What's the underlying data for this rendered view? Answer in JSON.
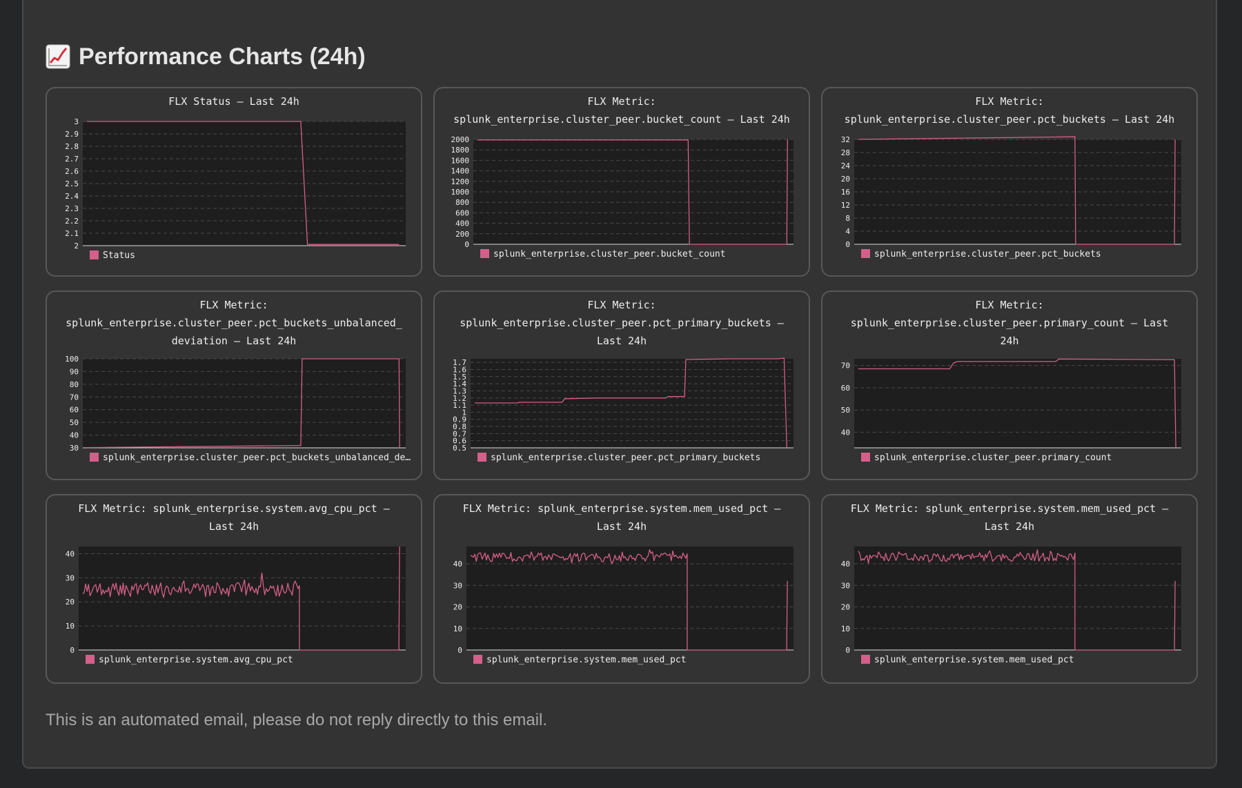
{
  "header": {
    "icon": "chart-increasing-icon",
    "title": "Performance Charts (24h)"
  },
  "footer": {
    "note": "This is an automated email, please do not reply directly to this email."
  },
  "colors": {
    "series": "#d65f89",
    "plot_bg": "#1e1e1e",
    "card_bg": "#333333",
    "text": "#eeeeee"
  },
  "chart_data": [
    {
      "type": "line",
      "title": [
        "FLX Status – Last 24h"
      ],
      "legend": "Status",
      "ylim": [
        2,
        3
      ],
      "yticks": [
        "3",
        "2.9",
        "2.8",
        "2.7",
        "2.6",
        "2.5",
        "2.4",
        "2.3",
        "2.2",
        "2.1",
        "2"
      ],
      "xlim": [
        0,
        24
      ],
      "points": [
        [
          0.3,
          3
        ],
        [
          16.2,
          3
        ],
        [
          16.7,
          2.01
        ],
        [
          23.5,
          2.01
        ]
      ]
    },
    {
      "type": "line",
      "title": [
        "FLX Metric:",
        "splunk_enterprise.cluster_peer.bucket_count – Last 24h"
      ],
      "legend": "splunk_enterprise.cluster_peer.bucket_count",
      "ylim": [
        0,
        2000
      ],
      "yticks": [
        "2000",
        "1800",
        "1600",
        "1400",
        "1200",
        "1000",
        "800",
        "600",
        "400",
        "200",
        "0"
      ],
      "xlim": [
        0,
        24
      ],
      "points": [
        [
          0.3,
          1990
        ],
        [
          16.1,
          1990
        ],
        [
          16.2,
          0
        ],
        [
          23.5,
          0
        ],
        [
          23.55,
          2000
        ]
      ]
    },
    {
      "type": "line",
      "title": [
        "FLX Metric:",
        "splunk_enterprise.cluster_peer.pct_buckets – Last 24h"
      ],
      "legend": "splunk_enterprise.cluster_peer.pct_buckets",
      "ylim": [
        0,
        32
      ],
      "yticks": [
        "32",
        "28",
        "24",
        "20",
        "16",
        "12",
        "8",
        "4",
        "0"
      ],
      "xlim": [
        0,
        24
      ],
      "points": [
        [
          0.3,
          32
        ],
        [
          16.2,
          32.8
        ],
        [
          16.25,
          0
        ],
        [
          23.5,
          0
        ],
        [
          23.55,
          32
        ]
      ]
    },
    {
      "type": "line",
      "title": [
        "FLX Metric:",
        "splunk_enterprise.cluster_peer.pct_buckets_unbalanced_",
        "deviation – Last 24h"
      ],
      "legend": "splunk_enterprise.cluster_peer.pct_buckets_unbalanced_de…",
      "ylim": [
        30,
        100
      ],
      "yticks": [
        "100",
        "90",
        "80",
        "70",
        "60",
        "50",
        "40",
        "30"
      ],
      "xlim": [
        0,
        24
      ],
      "points": [
        [
          0.3,
          30.2
        ],
        [
          16.2,
          31.8
        ],
        [
          16.3,
          100
        ],
        [
          23.5,
          100
        ],
        [
          23.55,
          30
        ]
      ]
    },
    {
      "type": "line",
      "title": [
        "FLX Metric:",
        "splunk_enterprise.cluster_peer.pct_primary_buckets –",
        "Last 24h"
      ],
      "legend": "splunk_enterprise.cluster_peer.pct_primary_buckets",
      "ylim": [
        0.5,
        1.75
      ],
      "yticks": [
        "1.7",
        "1.6",
        "1.5",
        "1.4",
        "1.3",
        "1.2",
        "1.1",
        "1",
        "0.9",
        "0.8",
        "0.7",
        "0.6",
        "0.5"
      ],
      "xlim": [
        0,
        24
      ],
      "points": [
        [
          0.3,
          1.13
        ],
        [
          3.5,
          1.13
        ],
        [
          3.6,
          1.14
        ],
        [
          6.8,
          1.14
        ],
        [
          7.0,
          1.19
        ],
        [
          9.5,
          1.2
        ],
        [
          14.5,
          1.2
        ],
        [
          14.7,
          1.22
        ],
        [
          15.9,
          1.22
        ],
        [
          16.0,
          1.74
        ],
        [
          19.5,
          1.75
        ],
        [
          22.8,
          1.75
        ],
        [
          23.3,
          1.76
        ],
        [
          23.5,
          0.5
        ]
      ]
    },
    {
      "type": "line",
      "title": [
        "FLX Metric:",
        "splunk_enterprise.cluster_peer.primary_count – Last",
        "24h"
      ],
      "legend": "splunk_enterprise.cluster_peer.primary_count",
      "ylim": [
        33,
        73
      ],
      "yticks": [
        "70",
        "60",
        "50",
        "40"
      ],
      "yvalues": [
        70,
        60,
        50,
        40
      ],
      "xlim": [
        0,
        24
      ],
      "points": [
        [
          0.3,
          68.5
        ],
        [
          7.0,
          68.5
        ],
        [
          7.3,
          71.2
        ],
        [
          7.6,
          71.8
        ],
        [
          14.8,
          71.8
        ],
        [
          15.0,
          72.9
        ],
        [
          23.5,
          72.6
        ],
        [
          23.6,
          33
        ]
      ]
    },
    {
      "type": "line",
      "title": [
        "FLX Metric: splunk_enterprise.system.avg_cpu_pct –",
        "Last 24h"
      ],
      "legend": "splunk_enterprise.system.avg_cpu_pct",
      "ylim": [
        0,
        43
      ],
      "yticks": [
        "40",
        "30",
        "20",
        "10",
        "0"
      ],
      "yvalues": [
        40,
        30,
        20,
        10,
        0
      ],
      "xlim": [
        0,
        24
      ],
      "series_style": "noisy",
      "noisy": {
        "start": 0.3,
        "end": 16.2,
        "base": 25,
        "amp": 3,
        "spike": 32,
        "seed": 3
      },
      "tail_points": [
        [
          16.2,
          0
        ],
        [
          23.5,
          0
        ],
        [
          23.55,
          43
        ]
      ]
    },
    {
      "type": "line",
      "title": [
        "FLX Metric: splunk_enterprise.system.mem_used_pct –",
        "Last 24h"
      ],
      "legend": "splunk_enterprise.system.mem_used_pct",
      "ylim": [
        0,
        48
      ],
      "yticks": [
        "40",
        "30",
        "20",
        "10",
        "0"
      ],
      "yvalues": [
        40,
        30,
        20,
        10,
        0
      ],
      "xlim": [
        0,
        24
      ],
      "series_style": "noisy",
      "noisy": {
        "start": 0.3,
        "end": 16.2,
        "base": 43,
        "amp": 2,
        "spike": 46.5,
        "seed": 7
      },
      "tail_points": [
        [
          16.2,
          0
        ],
        [
          23.5,
          0
        ],
        [
          23.55,
          32
        ]
      ]
    },
    {
      "type": "line",
      "title": [
        "FLX Metric: splunk_enterprise.system.mem_used_pct –",
        "Last 24h"
      ],
      "legend": "splunk_enterprise.system.mem_used_pct",
      "ylim": [
        0,
        48
      ],
      "yticks": [
        "40",
        "30",
        "20",
        "10",
        "0"
      ],
      "yvalues": [
        40,
        30,
        20,
        10,
        0
      ],
      "xlim": [
        0,
        24
      ],
      "series_style": "noisy",
      "noisy": {
        "start": 0.3,
        "end": 16.2,
        "base": 43,
        "amp": 2,
        "spike": 46.5,
        "seed": 11
      },
      "tail_points": [
        [
          16.2,
          0
        ],
        [
          23.5,
          0
        ],
        [
          23.55,
          32
        ]
      ]
    }
  ]
}
